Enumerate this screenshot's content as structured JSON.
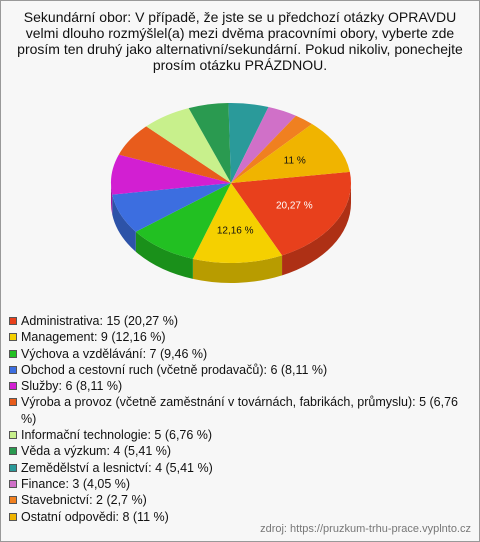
{
  "chart_data": {
    "type": "pie",
    "title": "Sekundární obor: V případě, že jste se u předchozí otázky OPRAVDU velmi dlouho rozmýšlel(a) mezi dvěma pracovními obory, vyberte zde prosím ten druhý jako alternativní/sekundární. Pokud nikoliv, ponechejte prosím otázku PRÁZDNOU.",
    "categories": [
      "Administrativa: 15 (20,27 %)",
      "Management: 9 (12,16 %)",
      "Výchova a vzdělávání: 7 (9,46 %)",
      "Obchod a cestovní ruch (včetně prodavačů): 6 (8,11 %)",
      "Služby: 6 (8,11 %)",
      "Výroba a provoz (včetně zaměstnání v továrnách, fabrikách, průmyslu): 5 (6,76 %)",
      "Informační technologie: 5 (6,76 %)",
      "Věda a výzkum: 4 (5,41 %)",
      "Zemědělství a lesnictví: 4 (5,41 %)",
      "Finance: 3 (4,05 %)",
      "Stavebnictví: 2 (2,7 %)",
      "Ostatní odpovědi: 8 (11 %)"
    ],
    "values": [
      20.27,
      12.16,
      9.46,
      8.11,
      8.11,
      6.76,
      6.76,
      5.41,
      5.41,
      4.05,
      2.7,
      11
    ],
    "value_labels": [
      "20,27 %",
      "12,16 %",
      null,
      null,
      null,
      null,
      null,
      null,
      null,
      null,
      null,
      "11 %"
    ],
    "colors": [
      "#e8401c",
      "#f5d000",
      "#22c022",
      "#3c6ee0",
      "#d21fd2",
      "#e85c1c",
      "#c8f08c",
      "#2a9a50",
      "#2a9a9a",
      "#d070c8",
      "#f08020",
      "#f0b400"
    ],
    "source": "zdroj: https://pruzkum-trhu-prace.vyplnto.cz"
  }
}
